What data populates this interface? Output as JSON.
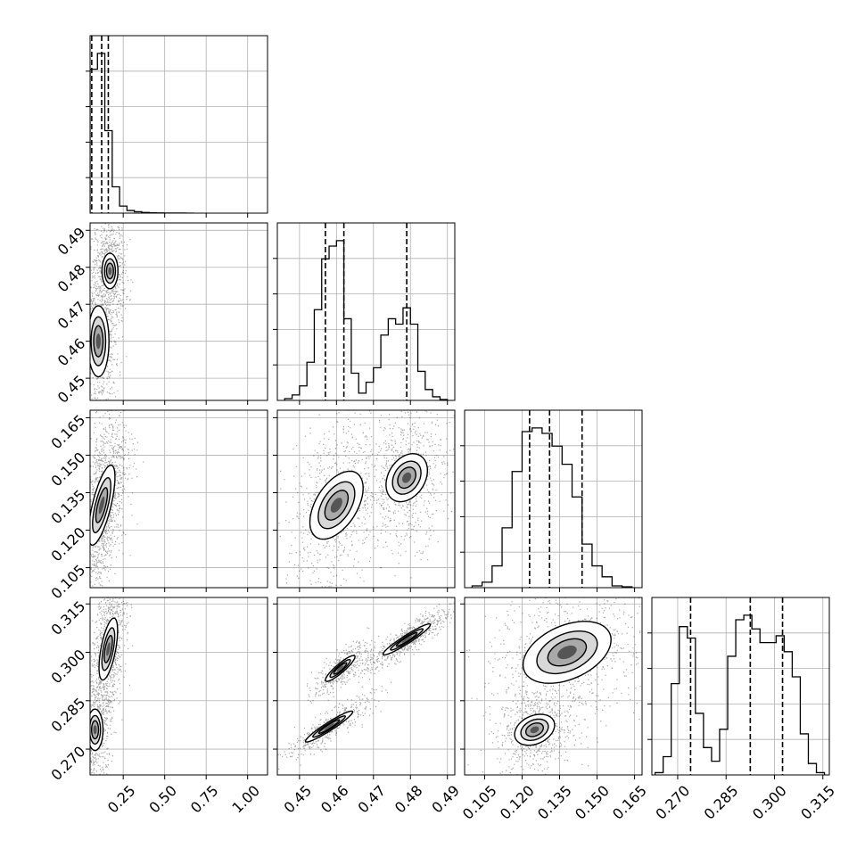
{
  "chart_data": {
    "type": "corner",
    "grid": true,
    "colors": {
      "ink": "#000000",
      "grid": "#b0b0b0"
    },
    "parameters": [
      {
        "range": [
          0.05,
          1.12
        ],
        "ticks": [
          0.25,
          0.5,
          0.75,
          1.0
        ],
        "tick_labels": [
          "0.25",
          "0.50",
          "0.75",
          "1.00"
        ]
      },
      {
        "range": [
          0.444,
          0.492
        ],
        "ticks": [
          0.45,
          0.46,
          0.47,
          0.48,
          0.49
        ],
        "tick_labels": [
          "0.45",
          "0.46",
          "0.47",
          "0.48",
          "0.49"
        ]
      },
      {
        "range": [
          0.097,
          0.168
        ],
        "ticks": [
          0.105,
          0.12,
          0.135,
          0.15,
          0.165
        ],
        "tick_labels": [
          "0.105",
          "0.120",
          "0.135",
          "0.150",
          "0.165"
        ]
      },
      {
        "range": [
          0.262,
          0.317
        ],
        "ticks": [
          0.27,
          0.285,
          0.3,
          0.315
        ],
        "tick_labels": [
          "0.270",
          "0.285",
          "0.300",
          "0.315"
        ]
      }
    ],
    "histograms": [
      {
        "bin_edges": [
          0.05,
          0.0945,
          0.139,
          0.1835,
          0.228,
          0.2725,
          0.317,
          0.3615,
          0.406,
          0.4505,
          0.495,
          0.5395,
          0.584,
          0.6285,
          0.673
        ],
        "counts": [
          0.82,
          0.91,
          0.47,
          0.15,
          0.04,
          0.015,
          0.008,
          0.004,
          0.002,
          0.001,
          0.0005,
          0.0003,
          0.0002,
          0.0001
        ],
        "quantiles": [
          0.06,
          0.12,
          0.16
        ]
      },
      {
        "bin_edges": [
          0.446,
          0.448,
          0.45,
          0.452,
          0.454,
          0.456,
          0.458,
          0.46,
          0.462,
          0.464,
          0.466,
          0.468,
          0.47,
          0.472,
          0.474,
          0.476,
          0.478,
          0.48,
          0.482,
          0.484,
          0.486,
          0.488,
          0.49
        ],
        "counts": [
          0.01,
          0.03,
          0.08,
          0.21,
          0.5,
          0.78,
          0.85,
          0.88,
          0.45,
          0.15,
          0.04,
          0.1,
          0.18,
          0.36,
          0.45,
          0.42,
          0.51,
          0.42,
          0.16,
          0.06,
          0.02,
          0.005
        ],
        "quantiles": [
          0.457,
          0.462,
          0.479
        ]
      },
      {
        "bin_edges": [
          0.1,
          0.104,
          0.108,
          0.112,
          0.116,
          0.12,
          0.124,
          0.128,
          0.132,
          0.136,
          0.14,
          0.144,
          0.148,
          0.152,
          0.156,
          0.16,
          0.164
        ],
        "counts": [
          0.01,
          0.03,
          0.12,
          0.33,
          0.64,
          0.86,
          0.88,
          0.85,
          0.78,
          0.68,
          0.5,
          0.24,
          0.12,
          0.06,
          0.01,
          0.005
        ],
        "quantiles": [
          0.123,
          0.131,
          0.144
        ]
      },
      {
        "bin_edges": [
          0.263,
          0.2655,
          0.268,
          0.2705,
          0.273,
          0.2755,
          0.278,
          0.2805,
          0.283,
          0.2855,
          0.288,
          0.2905,
          0.293,
          0.2955,
          0.298,
          0.3005,
          0.303,
          0.3055,
          0.308,
          0.3105,
          0.313,
          0.3155
        ],
        "counts": [
          0.01,
          0.08,
          0.4,
          0.65,
          0.6,
          0.27,
          0.12,
          0.06,
          0.2,
          0.52,
          0.68,
          0.7,
          0.64,
          0.58,
          0.58,
          0.61,
          0.54,
          0.43,
          0.18,
          0.05,
          0.01
        ],
        "quantiles": [
          0.274,
          0.2925,
          0.3025
        ]
      }
    ],
    "clusters": [
      {
        "i": 1,
        "j": 0,
        "x": 0.1,
        "y": 0.46,
        "sx": 0.04,
        "sy": 0.006,
        "rho": 0.0,
        "w": 0.55
      },
      {
        "i": 1,
        "j": 0,
        "x": 0.17,
        "y": 0.479,
        "sx": 0.03,
        "sy": 0.003,
        "rho": 0.0,
        "w": 0.45
      },
      {
        "i": 2,
        "j": 0,
        "x": 0.12,
        "y": 0.13,
        "sx": 0.05,
        "sy": 0.01,
        "rho": 0.7,
        "w": 1.0
      },
      {
        "i": 3,
        "j": 0,
        "x": 0.08,
        "y": 0.276,
        "sx": 0.03,
        "sy": 0.004,
        "rho": 0.0,
        "w": 0.4
      },
      {
        "i": 3,
        "j": 0,
        "x": 0.16,
        "y": 0.301,
        "sx": 0.035,
        "sy": 0.006,
        "rho": 0.6,
        "w": 0.6
      },
      {
        "i": 2,
        "j": 1,
        "x": 0.46,
        "y": 0.13,
        "sx": 0.0045,
        "sy": 0.0085,
        "rho": 0.5,
        "w": 0.55
      },
      {
        "i": 2,
        "j": 1,
        "x": 0.479,
        "y": 0.141,
        "sx": 0.0035,
        "sy": 0.006,
        "rho": 0.3,
        "w": 0.45
      },
      {
        "i": 3,
        "j": 1,
        "x": 0.458,
        "y": 0.277,
        "sx": 0.004,
        "sy": 0.003,
        "rho": 0.95,
        "w": 0.3
      },
      {
        "i": 3,
        "j": 1,
        "x": 0.461,
        "y": 0.295,
        "sx": 0.0025,
        "sy": 0.0025,
        "rho": 0.9,
        "w": 0.25
      },
      {
        "i": 3,
        "j": 1,
        "x": 0.479,
        "y": 0.304,
        "sx": 0.004,
        "sy": 0.003,
        "rho": 0.95,
        "w": 0.45
      },
      {
        "i": 3,
        "j": 2,
        "x": 0.125,
        "y": 0.276,
        "sx": 0.005,
        "sy": 0.003,
        "rho": 0.3,
        "w": 0.4
      },
      {
        "i": 3,
        "j": 2,
        "x": 0.138,
        "y": 0.3,
        "sx": 0.011,
        "sy": 0.006,
        "rho": 0.4,
        "w": 0.6
      }
    ]
  }
}
